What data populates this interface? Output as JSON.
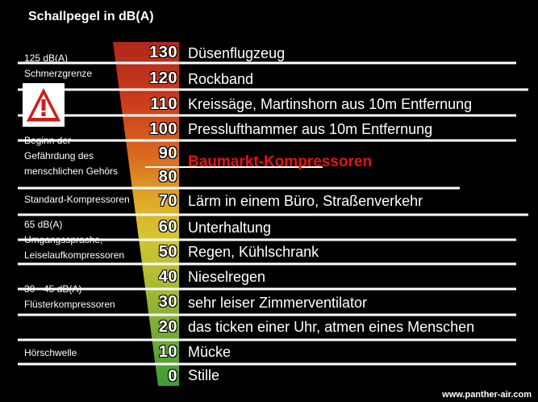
{
  "title": "Schallpegel in dB(A)",
  "highlight": "Baumarkt-Kompressoren",
  "watermark": "www.panther-air.com",
  "warning_icon": "warning-triangle-icon",
  "levels": [
    {
      "value": "130",
      "label": "Düsenflugzeug"
    },
    {
      "value": "120",
      "label": "Rockband"
    },
    {
      "value": "110",
      "label": "Kreissäge, Martinshorn aus 10m Entfernung"
    },
    {
      "value": "100",
      "label": "Presslufthammer aus 10m Entfernung"
    },
    {
      "value": "90",
      "label": ""
    },
    {
      "value": "80",
      "label": ""
    },
    {
      "value": "70",
      "label": "Lärm in einem Büro, Straßenverkehr"
    },
    {
      "value": "60",
      "label": "Unterhaltung"
    },
    {
      "value": "50",
      "label": "Regen, Kühlschrank"
    },
    {
      "value": "40",
      "label": "Nieselregen"
    },
    {
      "value": "30",
      "label": "sehr leiser Zimmerventilator"
    },
    {
      "value": "20",
      "label": "das ticken einer Uhr, atmen eines Menschen"
    },
    {
      "value": "10",
      "label": "Mücke"
    },
    {
      "value": "0",
      "label": "Stille"
    }
  ],
  "notes": [
    {
      "line1": "125 dB(A)",
      "line2": "Schmerzgrenze"
    },
    {
      "line1": "Beginn der",
      "line2": "Gefährdung des",
      "line3": "menschlichen Gehörs"
    },
    {
      "line1": "Standard-Kompressoren"
    },
    {
      "line1": "65 dB(A)",
      "line2": "Umgangssprache,",
      "line3": "Leiselaufkompressoren"
    },
    {
      "line1": "30 - 45 dB(A)",
      "line2": "Flüsterkompressoren"
    },
    {
      "line1": "Hörschwelle"
    }
  ]
}
